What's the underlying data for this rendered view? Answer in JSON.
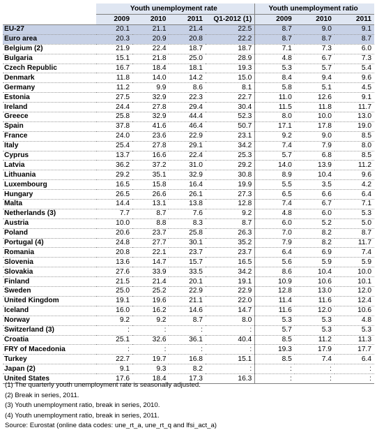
{
  "header": {
    "group_rate": "Youth unemployment rate",
    "group_ratio": "Youth unemployment ratio",
    "rate_cols": [
      "2009",
      "2010",
      "2011",
      "Q1-2012 (1)"
    ],
    "ratio_cols": [
      "2009",
      "2010",
      "2011"
    ]
  },
  "rows": [
    {
      "name": "EU-27",
      "agg": true,
      "v": [
        "20.1",
        "21.1",
        "21.4",
        "22.5",
        "8.7",
        "9.0",
        "9.1"
      ]
    },
    {
      "name": "Euro area",
      "agg": true,
      "v": [
        "20.3",
        "20.9",
        "20.8",
        "22.2",
        "8.7",
        "8.7",
        "8.7"
      ]
    },
    {
      "name": "Belgium (2)",
      "v": [
        "21.9",
        "22.4",
        "18.7",
        "18.7",
        "7.1",
        "7.3",
        "6.0"
      ]
    },
    {
      "name": "Bulgaria",
      "v": [
        "15.1",
        "21.8",
        "25.0",
        "28.9",
        "4.8",
        "6.7",
        "7.3"
      ]
    },
    {
      "name": "Czech Republic",
      "v": [
        "16.7",
        "18.4",
        "18.1",
        "19.3",
        "5.3",
        "5.7",
        "5.4"
      ]
    },
    {
      "name": "Denmark",
      "v": [
        "11.8",
        "14.0",
        "14.2",
        "15.0",
        "8.4",
        "9.4",
        "9.6"
      ]
    },
    {
      "name": "Germany",
      "v": [
        "11.2",
        "9.9",
        "8.6",
        "8.1",
        "5.8",
        "5.1",
        "4.5"
      ]
    },
    {
      "name": "Estonia",
      "v": [
        "27.5",
        "32.9",
        "22.3",
        "22.7",
        "11.0",
        "12.6",
        "9.1"
      ]
    },
    {
      "name": "Ireland",
      "v": [
        "24.4",
        "27.8",
        "29.4",
        "30.4",
        "11.5",
        "11.8",
        "11.7"
      ]
    },
    {
      "name": "Greece",
      "v": [
        "25.8",
        "32.9",
        "44.4",
        "52.3",
        "8.0",
        "10.0",
        "13.0"
      ]
    },
    {
      "name": "Spain",
      "v": [
        "37.8",
        "41.6",
        "46.4",
        "50.7",
        "17.1",
        "17.8",
        "19.0"
      ]
    },
    {
      "name": "France",
      "v": [
        "24.0",
        "23.6",
        "22.9",
        "23.1",
        "9.2",
        "9.0",
        "8.5"
      ]
    },
    {
      "name": "Italy",
      "v": [
        "25.4",
        "27.8",
        "29.1",
        "34.2",
        "7.4",
        "7.9",
        "8.0"
      ]
    },
    {
      "name": "Cyprus",
      "v": [
        "13.7",
        "16.6",
        "22.4",
        "25.3",
        "5.7",
        "6.8",
        "8.5"
      ]
    },
    {
      "name": "Latvia",
      "v": [
        "36.2",
        "37.2",
        "31.0",
        "29.2",
        "14.0",
        "13.9",
        "11.2"
      ]
    },
    {
      "name": "Lithuania",
      "v": [
        "29.2",
        "35.1",
        "32.9",
        "30.8",
        "8.9",
        "10.4",
        "9.6"
      ]
    },
    {
      "name": "Luxembourg",
      "v": [
        "16.5",
        "15.8",
        "16.4",
        "19.9",
        "5.5",
        "3.5",
        "4.2"
      ]
    },
    {
      "name": "Hungary",
      "v": [
        "26.5",
        "26.6",
        "26.1",
        "27.3",
        "6.5",
        "6.6",
        "6.4"
      ]
    },
    {
      "name": "Malta",
      "v": [
        "14.4",
        "13.1",
        "13.8",
        "12.8",
        "7.4",
        "6.7",
        "7.1"
      ]
    },
    {
      "name": "Netherlands (3)",
      "v": [
        "7.7",
        "8.7",
        "7.6",
        "9.2",
        "4.8",
        "6.0",
        "5.3"
      ]
    },
    {
      "name": "Austria",
      "v": [
        "10.0",
        "8.8",
        "8.3",
        "8.7",
        "6.0",
        "5.2",
        "5.0"
      ]
    },
    {
      "name": "Poland",
      "v": [
        "20.6",
        "23.7",
        "25.8",
        "26.3",
        "7.0",
        "8.2",
        "8.7"
      ]
    },
    {
      "name": "Portugal (4)",
      "v": [
        "24.8",
        "27.7",
        "30.1",
        "35.2",
        "7.9",
        "8.2",
        "11.7"
      ]
    },
    {
      "name": "Romania",
      "v": [
        "20.8",
        "22.1",
        "23.7",
        "23.7",
        "6.4",
        "6.9",
        "7.4"
      ]
    },
    {
      "name": "Slovenia",
      "v": [
        "13.6",
        "14.7",
        "15.7",
        "16.5",
        "5.6",
        "5.9",
        "5.9"
      ]
    },
    {
      "name": "Slovakia",
      "v": [
        "27.6",
        "33.9",
        "33.5",
        "34.2",
        "8.6",
        "10.4",
        "10.0"
      ]
    },
    {
      "name": "Finland",
      "v": [
        "21.5",
        "21.4",
        "20.1",
        "19.1",
        "10.9",
        "10.6",
        "10.1"
      ]
    },
    {
      "name": "Sweden",
      "v": [
        "25.0",
        "25.2",
        "22.9",
        "22.9",
        "12.8",
        "13.0",
        "12.0"
      ]
    },
    {
      "name": "United Kingdom",
      "v": [
        "19.1",
        "19.6",
        "21.1",
        "22.0",
        "11.4",
        "11.6",
        "12.4"
      ]
    },
    {
      "name": "Iceland",
      "v": [
        "16.0",
        "16.2",
        "14.6",
        "14.7",
        "11.6",
        "12.0",
        "10.6"
      ]
    },
    {
      "name": "Norway",
      "v": [
        "9.2",
        "9.2",
        "8.7",
        "8.0",
        "5.3",
        "5.3",
        "4.8"
      ]
    },
    {
      "name": "Switzerland (3)",
      "v": [
        ":",
        ":",
        ":",
        ":",
        "5.7",
        "5.3",
        "5.3"
      ]
    },
    {
      "name": "Croatia",
      "v": [
        "25.1",
        "32.6",
        "36.1",
        "40.4",
        "8.5",
        "11.2",
        "11.3"
      ]
    },
    {
      "name": "FRY of Macedonia",
      "v": [
        ":",
        ":",
        ":",
        ":",
        "19.3",
        "17.9",
        "17.7"
      ]
    },
    {
      "name": "Turkey",
      "v": [
        "22.7",
        "19.7",
        "16.8",
        "15.1",
        "8.5",
        "7.4",
        "6.4"
      ]
    },
    {
      "name": "Japan (2)",
      "v": [
        "9.1",
        "9.3",
        "8.2",
        ":",
        ":",
        ":",
        ":"
      ]
    },
    {
      "name": "United States",
      "v": [
        "17.6",
        "18.4",
        "17.3",
        "16.3",
        ":",
        ":",
        ":"
      ]
    }
  ],
  "notes": [
    "(1) The quarterly youth unemployment rate is seasonally adjusted.",
    "(2) Break in series, 2011.",
    "(3) Youth unemployment ratio, break in series, 2010.",
    "(4) Youth unemployment ratio, break in series, 2011.",
    "Source: Eurostat (online data codes: une_rt_a, une_rt_q and lfsi_act_a)"
  ]
}
